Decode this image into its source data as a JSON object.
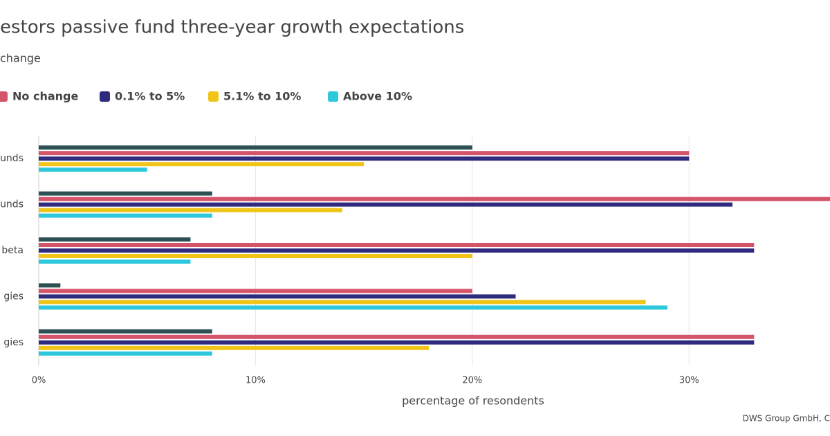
{
  "chart_data": {
    "type": "hbar",
    "title": "estors passive fund three-year growth expectations",
    "subtitle": "change",
    "x_label": "percentage of resondents",
    "credit": "DWS Group GmbH, C",
    "categories": [
      "unds",
      "unds",
      "beta",
      "gies",
      "gies"
    ],
    "series": [
      {
        "color": "#2d5053",
        "values": [
          20,
          8,
          7,
          1,
          8
        ]
      },
      {
        "name": "No change",
        "color": "#d4546a",
        "values": [
          30,
          37,
          33,
          20,
          33
        ]
      },
      {
        "name": "0.1% to 5%",
        "color": "#2e2a7e",
        "values": [
          30,
          32,
          33,
          22,
          33
        ]
      },
      {
        "name": "5.1% to 10%",
        "color": "#f0c419",
        "values": [
          15,
          14,
          20,
          28,
          18
        ]
      },
      {
        "name": "Above 10%",
        "color": "#2ec8dc",
        "values": [
          5,
          8,
          7,
          29,
          8
        ]
      }
    ],
    "xlim": [
      0,
      36.5
    ],
    "xticks": [
      {
        "value": 0,
        "label": "0%"
      },
      {
        "value": 10,
        "label": "10%"
      },
      {
        "value": 20,
        "label": "20%"
      },
      {
        "value": 30,
        "label": "30%"
      }
    ],
    "grid": true
  }
}
